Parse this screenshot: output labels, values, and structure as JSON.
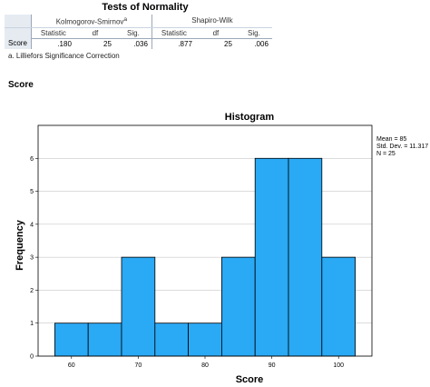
{
  "table": {
    "title": "Tests of Normality",
    "groups": [
      "Kolmogorov-Smirnov",
      "Shapiro-Wilk"
    ],
    "ks_superscript": "a",
    "columns": [
      "Statistic",
      "df",
      "Sig.",
      "Statistic",
      "df",
      "Sig."
    ],
    "row_label": "Score",
    "values": [
      ".180",
      "25",
      ".036",
      ".877",
      "25",
      ".006"
    ],
    "footnote": "a. Lilliefors Significance Correction"
  },
  "section_heading": "Score",
  "chart_data": {
    "type": "bar",
    "title": "Histogram",
    "xlabel": "Score",
    "ylabel": "Frequency",
    "bins": [
      {
        "start": 57.5,
        "end": 62.5,
        "value": 1
      },
      {
        "start": 62.5,
        "end": 67.5,
        "value": 1
      },
      {
        "start": 67.5,
        "end": 72.5,
        "value": 3
      },
      {
        "start": 72.5,
        "end": 77.5,
        "value": 1
      },
      {
        "start": 77.5,
        "end": 82.5,
        "value": 1
      },
      {
        "start": 82.5,
        "end": 87.5,
        "value": 3
      },
      {
        "start": 87.5,
        "end": 92.5,
        "value": 6
      },
      {
        "start": 92.5,
        "end": 97.5,
        "value": 6
      },
      {
        "start": 97.5,
        "end": 102.5,
        "value": 3
      }
    ],
    "xlim": [
      55,
      105
    ],
    "ylim": [
      0,
      7
    ],
    "xticks": [
      "60",
      "70",
      "80",
      "90",
      "100"
    ],
    "yticks": [
      "0",
      "1",
      "2",
      "3",
      "4",
      "5",
      "6"
    ],
    "grid": true,
    "bar_color": "#2aa9f5",
    "stats": [
      "Mean = 85",
      "Std. Dev. = 11.317",
      "N = 25"
    ]
  }
}
